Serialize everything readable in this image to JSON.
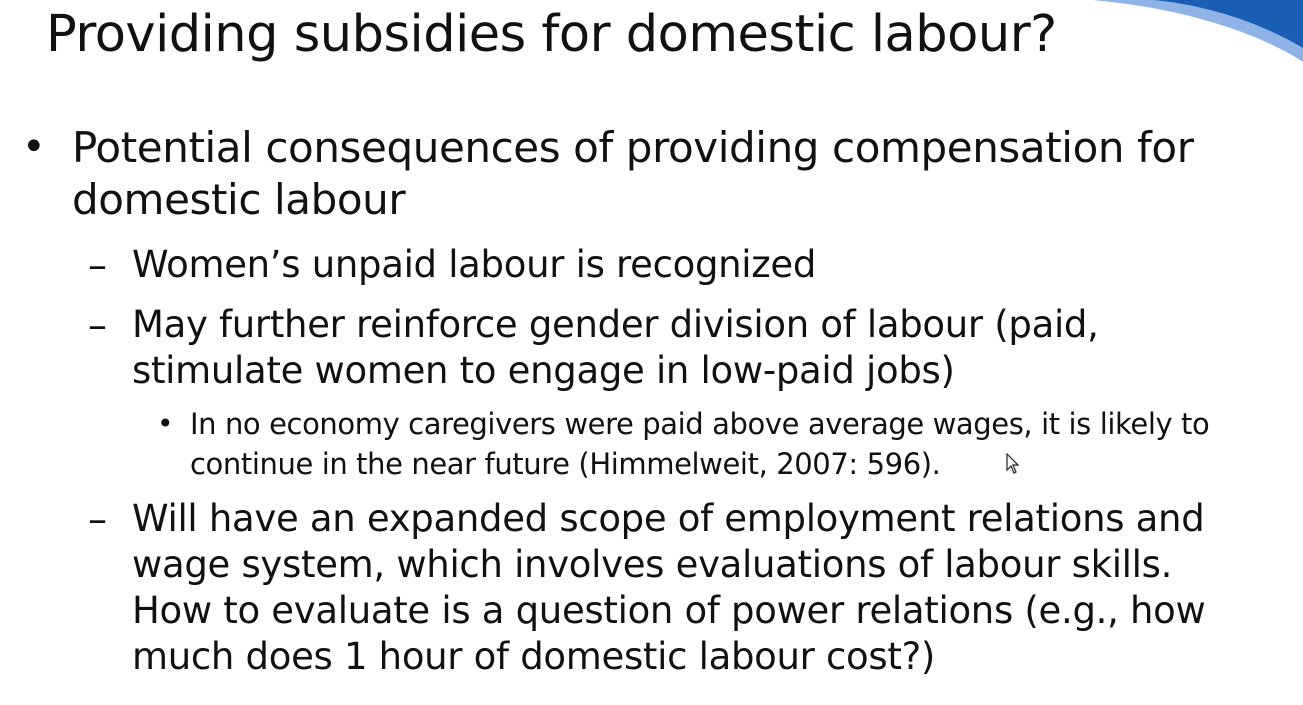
{
  "slide": {
    "title": "Providing subsidies for domestic labour?",
    "main_point": {
      "bullet": "•",
      "text": "Potential consequences of providing compensation for domestic labour"
    },
    "sub_points": [
      {
        "marker": "–",
        "text": "Women’s unpaid labour is recognized"
      },
      {
        "marker": "–",
        "text": "May further reinforce gender division of labour (paid, stimulate women to engage in low-paid jobs)"
      },
      {
        "marker": "–",
        "text": "Will have an expanded scope of employment relations and wage system, which involves evaluations of labour skills. How to evaluate is a question of power relations (e.g., how much does 1 hour of domestic labour cost?)"
      }
    ],
    "nested_point": {
      "bullet": "•",
      "text": "In no economy caregivers were paid above average wages, it is likely to continue in the near future (Himmelweit, 2007: 596)."
    }
  },
  "colors": {
    "text": "#111111",
    "accent_dark": "#1a5fb4",
    "accent_light": "#8fb3e6",
    "background": "#ffffff"
  },
  "icons": {
    "decoration": "corner-swoosh",
    "pointer": "mouse-pointer-icon"
  }
}
